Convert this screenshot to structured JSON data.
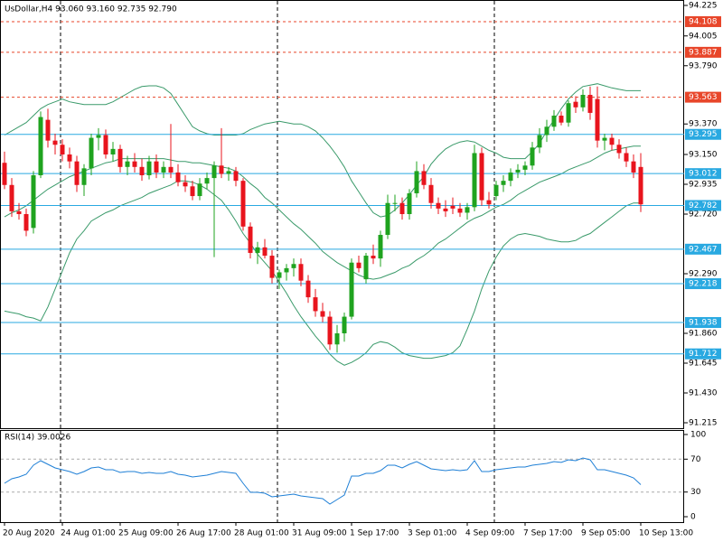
{
  "chart_data": [
    {
      "type": "candlestick",
      "title": "UsDollar,H4  93.060 93.160 92.735 92.790",
      "categories": [
        "20 Aug 2020",
        null,
        null,
        null,
        null,
        null,
        null,
        null,
        "24 Aug 01:00",
        null,
        null,
        null,
        null,
        null,
        null,
        null,
        "25 Aug 09:00",
        null,
        null,
        null,
        null,
        null,
        null,
        null,
        "26 Aug 17:00",
        null,
        null,
        null,
        null,
        null,
        null,
        null,
        "28 Aug 01:00",
        null,
        null,
        null,
        null,
        null,
        null,
        null,
        "31 Aug 09:00",
        null,
        null,
        null,
        null,
        null,
        null,
        null,
        "1 Sep 17:00",
        null,
        null,
        null,
        null,
        null,
        null,
        null,
        "3 Sep 01:00",
        null,
        null,
        null,
        null,
        null,
        null,
        null,
        "4 Sep 09:00",
        null,
        null,
        null,
        null,
        null,
        null,
        null,
        "7 Sep 17:00",
        null,
        null,
        null,
        null,
        null,
        null,
        null,
        "9 Sep 05:00",
        null,
        null,
        null,
        null,
        null,
        null,
        null,
        "10 Sep 13:00"
      ],
      "open": [
        93.09,
        92.93,
        92.74,
        92.72,
        92.62,
        93.0,
        93.4,
        93.25,
        93.22,
        93.15,
        93.1,
        92.93,
        93.05,
        93.27,
        93.29,
        93.15,
        93.19,
        93.06,
        93.1,
        93.06,
        93.0,
        93.1,
        93.02,
        93.06,
        93.02,
        92.95,
        92.92,
        92.85,
        92.94,
        92.98,
        93.07,
        93.01,
        93.03,
        92.96,
        92.63,
        92.44,
        92.48,
        92.42,
        92.26,
        92.3,
        92.33,
        92.36,
        92.24,
        92.12,
        92.02,
        91.98,
        91.78,
        91.86,
        91.98,
        92.37,
        92.25,
        92.42,
        92.4,
        92.57,
        92.8,
        92.8,
        92.72,
        92.87,
        93.03,
        92.93,
        92.8,
        92.76,
        92.78,
        92.76,
        92.73,
        92.77,
        93.16,
        92.82,
        92.85,
        92.93,
        92.96,
        93.02,
        93.04,
        93.07,
        93.2,
        93.29,
        93.35,
        93.43,
        93.38,
        93.53,
        93.49,
        93.58,
        93.55,
        93.25,
        93.27,
        93.22,
        93.16,
        93.1,
        93.06
      ],
      "high": [
        93.17,
        92.98,
        92.8,
        92.76,
        93.03,
        93.46,
        93.48,
        93.3,
        93.26,
        93.2,
        93.14,
        93.08,
        93.3,
        93.34,
        93.33,
        93.24,
        93.22,
        93.14,
        93.16,
        93.12,
        93.14,
        93.15,
        93.1,
        93.37,
        93.08,
        93.0,
        92.96,
        92.98,
        93.02,
        93.1,
        93.34,
        93.06,
        93.06,
        92.98,
        92.66,
        92.52,
        92.54,
        92.46,
        92.32,
        92.36,
        92.4,
        92.4,
        92.28,
        92.18,
        92.08,
        92.02,
        91.92,
        92.01,
        92.4,
        92.42,
        92.44,
        92.5,
        92.6,
        92.86,
        92.86,
        92.84,
        92.9,
        93.1,
        93.08,
        92.98,
        92.84,
        92.82,
        92.84,
        92.8,
        92.8,
        93.22,
        93.2,
        92.88,
        92.96,
        93.0,
        93.05,
        93.08,
        93.1,
        93.24,
        93.34,
        93.4,
        93.47,
        93.46,
        93.54,
        93.57,
        93.62,
        93.64,
        93.64,
        93.3,
        93.3,
        93.26,
        93.2,
        93.15,
        93.16
      ],
      "low": [
        92.9,
        92.7,
        92.68,
        92.56,
        92.58,
        92.98,
        93.2,
        93.15,
        93.1,
        93.05,
        92.88,
        92.85,
        93.0,
        93.18,
        93.12,
        93.1,
        93.02,
        93.0,
        93.02,
        92.96,
        92.97,
        92.98,
        92.98,
        92.98,
        92.92,
        92.88,
        92.82,
        92.82,
        92.9,
        92.41,
        92.98,
        92.96,
        92.92,
        92.6,
        92.4,
        92.36,
        92.4,
        92.22,
        92.18,
        92.24,
        92.27,
        92.2,
        92.08,
        91.98,
        91.94,
        91.74,
        91.72,
        91.8,
        91.96,
        92.3,
        92.22,
        92.36,
        92.34,
        92.54,
        92.74,
        92.68,
        92.68,
        92.84,
        92.9,
        92.76,
        92.72,
        92.7,
        92.72,
        92.7,
        92.68,
        92.74,
        92.78,
        92.76,
        92.82,
        92.88,
        92.92,
        92.98,
        93.0,
        93.04,
        93.16,
        93.24,
        93.32,
        93.36,
        93.35,
        93.45,
        93.46,
        93.4,
        93.2,
        93.18,
        93.18,
        93.12,
        93.06,
        92.98,
        92.735
      ],
      "close": [
        92.93,
        92.74,
        92.72,
        92.6,
        93.0,
        93.42,
        93.25,
        93.22,
        93.15,
        93.1,
        92.93,
        93.05,
        93.27,
        93.29,
        93.15,
        93.19,
        93.06,
        93.1,
        93.06,
        93.0,
        93.1,
        93.02,
        93.06,
        93.02,
        92.95,
        92.92,
        92.85,
        92.94,
        92.98,
        93.07,
        93.01,
        93.03,
        92.96,
        92.63,
        92.44,
        92.48,
        92.42,
        92.26,
        92.3,
        92.33,
        92.36,
        92.24,
        92.12,
        92.02,
        91.98,
        91.78,
        91.86,
        91.98,
        92.37,
        92.33,
        92.42,
        92.4,
        92.57,
        92.8,
        92.8,
        92.72,
        92.87,
        93.03,
        92.93,
        92.8,
        92.76,
        92.74,
        92.76,
        92.73,
        92.77,
        93.16,
        92.82,
        92.79,
        92.93,
        92.96,
        93.02,
        93.04,
        93.07,
        93.2,
        93.29,
        93.35,
        93.43,
        93.38,
        93.52,
        93.49,
        93.58,
        93.45,
        93.25,
        93.27,
        93.22,
        93.16,
        93.1,
        93.02,
        92.79
      ],
      "up_color": "#1fa31f",
      "down_color": "#e8141d",
      "bands": [
        {
          "color": "#3a9a6a",
          "values": [
            93.29,
            93.32,
            93.35,
            93.38,
            93.43,
            93.48,
            93.51,
            93.53,
            93.55,
            93.53,
            93.52,
            93.51,
            93.51,
            93.51,
            93.51,
            93.53,
            93.56,
            93.59,
            93.62,
            93.64,
            93.645,
            93.645,
            93.63,
            93.59,
            93.51,
            93.43,
            93.35,
            93.32,
            93.3,
            93.29,
            93.29,
            93.29,
            93.29,
            93.3,
            93.33,
            93.35,
            93.37,
            93.38,
            93.39,
            93.38,
            93.37,
            93.37,
            93.35,
            93.32,
            93.27,
            93.21,
            93.14,
            93.06,
            92.96,
            92.88,
            92.8,
            92.73,
            92.7,
            92.71,
            92.75,
            92.8,
            92.86,
            92.93,
            92.99,
            93.08,
            93.14,
            93.19,
            93.22,
            93.24,
            93.25,
            93.24,
            93.21,
            93.18,
            93.16,
            93.13,
            93.12,
            93.12,
            93.12,
            93.17,
            93.23,
            93.32,
            93.4,
            93.48,
            93.55,
            93.6,
            93.64,
            93.65,
            93.66,
            93.645,
            93.63,
            93.62,
            93.61,
            93.61,
            93.61
          ]
        },
        {
          "color": "#3a9a6a",
          "values": [
            92.7,
            92.73,
            92.75,
            92.78,
            92.82,
            92.86,
            92.9,
            92.93,
            92.96,
            92.99,
            93.01,
            93.03,
            93.05,
            93.07,
            93.09,
            93.1,
            93.12,
            93.12,
            93.12,
            93.12,
            93.12,
            93.12,
            93.12,
            93.11,
            93.1,
            93.1,
            93.09,
            93.09,
            93.08,
            93.07,
            93.06,
            93.05,
            93.03,
            92.99,
            92.94,
            92.9,
            92.84,
            92.8,
            92.75,
            92.7,
            92.65,
            92.61,
            92.56,
            92.51,
            92.45,
            92.41,
            92.37,
            92.34,
            92.31,
            92.28,
            92.26,
            92.25,
            92.26,
            92.28,
            92.3,
            92.33,
            92.35,
            92.39,
            92.42,
            92.46,
            92.51,
            92.54,
            92.58,
            92.62,
            92.66,
            92.69,
            92.71,
            92.74,
            92.77,
            92.79,
            92.82,
            92.86,
            92.89,
            92.92,
            92.95,
            92.97,
            92.99,
            93.01,
            93.04,
            93.06,
            93.08,
            93.1,
            93.13,
            93.16,
            93.18,
            93.19,
            93.2,
            93.21,
            93.21
          ]
        },
        {
          "color": "#3a9a6a",
          "values": [
            92.02,
            92.01,
            92.0,
            91.98,
            91.97,
            91.95,
            92.05,
            92.18,
            92.31,
            92.44,
            92.54,
            92.6,
            92.67,
            92.7,
            92.73,
            92.75,
            92.78,
            92.8,
            92.82,
            92.84,
            92.87,
            92.89,
            92.91,
            92.93,
            92.96,
            92.96,
            92.95,
            92.93,
            92.9,
            92.86,
            92.82,
            92.75,
            92.67,
            92.58,
            92.51,
            92.43,
            92.37,
            92.31,
            92.23,
            92.15,
            92.06,
            91.98,
            91.91,
            91.84,
            91.78,
            91.71,
            91.66,
            91.63,
            91.65,
            91.68,
            91.72,
            91.78,
            91.8,
            91.79,
            91.76,
            91.72,
            91.7,
            91.69,
            91.68,
            91.68,
            91.69,
            91.7,
            91.72,
            91.77,
            91.89,
            92.02,
            92.18,
            92.31,
            92.41,
            92.49,
            92.54,
            92.57,
            92.58,
            92.57,
            92.56,
            92.54,
            92.53,
            92.52,
            92.52,
            92.53,
            92.56,
            92.58,
            92.62,
            92.66,
            92.7,
            92.74,
            92.78,
            92.8,
            92.8
          ]
        }
      ],
      "levels": [
        {
          "value": 94.108,
          "color": "#e8462a",
          "style": "dashed"
        },
        {
          "value": 93.887,
          "color": "#e8462a",
          "style": "dashed"
        },
        {
          "value": 93.563,
          "color": "#e8462a",
          "style": "dashed"
        },
        {
          "value": 93.295,
          "color": "#29a9e1",
          "style": "solid"
        },
        {
          "value": 93.012,
          "color": "#29a9e1",
          "style": "solid"
        },
        {
          "value": 92.782,
          "color": "#29a9e1",
          "style": "solid"
        },
        {
          "value": 92.467,
          "color": "#29a9e1",
          "style": "solid"
        },
        {
          "value": 92.218,
          "color": "#29a9e1",
          "style": "solid"
        },
        {
          "value": 91.938,
          "color": "#29a9e1",
          "style": "solid"
        },
        {
          "value": 91.712,
          "color": "#29a9e1",
          "style": "solid"
        }
      ],
      "ylim": [
        91.215,
        94.225
      ],
      "yticks": [
        94.225,
        94.005,
        {
          "value": 93.79,
          "label": "93.790"
        },
        {
          "value": 93.37,
          "label": "93.370"
        },
        {
          "value": 93.15,
          "label": "93.150"
        },
        92.935,
        {
          "value": 92.72,
          "label": "92.720"
        },
        {
          "value": 92.29,
          "label": "92.290"
        },
        {
          "value": 91.86,
          "label": "91.860"
        },
        91.645,
        {
          "value": 91.43,
          "label": "91.430"
        },
        91.215
      ]
    },
    {
      "type": "line",
      "title": "RSI(14) 39.0026",
      "color": "#1e7fd6",
      "values": [
        40.7,
        46.2,
        48.4,
        51.6,
        62.6,
        68.1,
        63.7,
        59.3,
        57.1,
        54.9,
        51.6,
        54.9,
        59.3,
        60.4,
        57.1,
        57.1,
        53.8,
        54.9,
        54.9,
        52.7,
        53.8,
        52.7,
        52.7,
        54.9,
        51.6,
        50.5,
        48.4,
        49.5,
        50.5,
        52.7,
        54.9,
        53.8,
        52.7,
        40.7,
        29.7,
        29.7,
        28.6,
        24.2,
        25.3,
        26.4,
        27.5,
        25.3,
        24.2,
        23.1,
        22.0,
        15.4,
        20.9,
        26.4,
        49.5,
        49.5,
        52.7,
        52.7,
        56.0,
        62.6,
        62.6,
        59.3,
        63.7,
        67.0,
        62.6,
        58.2,
        57.1,
        56.0,
        57.1,
        56.0,
        57.1,
        68.1,
        54.9,
        54.9,
        57.1,
        58.2,
        59.3,
        60.4,
        60.4,
        62.6,
        63.7,
        64.8,
        67.0,
        66.0,
        69.2,
        68.1,
        71.4,
        69.2,
        57.1,
        57.1,
        54.9,
        52.7,
        50.5,
        47.3,
        39.0
      ],
      "ylim": [
        0,
        100
      ],
      "yticks": [
        100,
        70,
        30,
        0
      ]
    }
  ]
}
